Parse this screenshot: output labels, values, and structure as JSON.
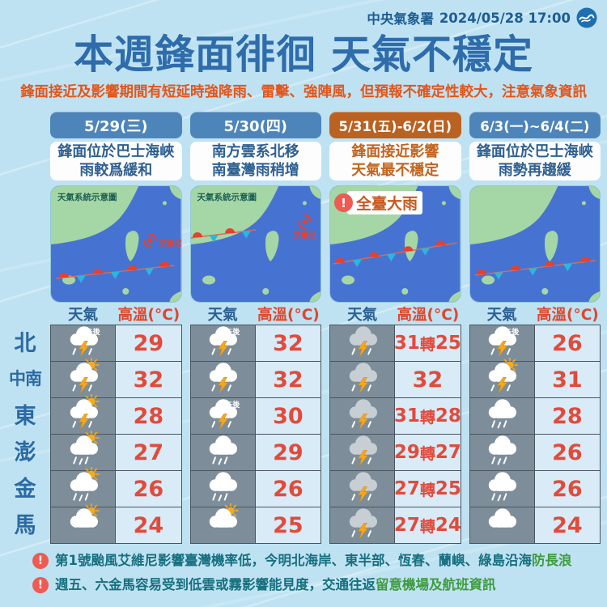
{
  "colors": {
    "background": "#bfe2f2",
    "title_blue": "#2e6cab",
    "subtitle_orange": "#e4551a",
    "pill_blue": "#4d85bb",
    "pill_orange": "#b96222",
    "map_sea": "#4673d2",
    "map_land": "#a5d6a5",
    "front_red": "#e8402e",
    "front_blue": "#2bb7dd",
    "icon_cell_gray": "#7d8e9a",
    "temp_cell_blue": "#d8ebf7",
    "temp_red": "#e14b3c",
    "note_teal": "#17707f",
    "note_green": "#3f9c40"
  },
  "header": {
    "agency": "中央氣象署",
    "datetime": "2024/05/28 17:00",
    "logo": "cwa-logo"
  },
  "title": "本週鋒面徘徊 天氣不穩定",
  "subtitle": "鋒面接近及影響期間有短延時強降雨、雷擊、強陣風，但預報不確定性較大，注意氣象資訊",
  "days": [
    {
      "date": "5/29(三)",
      "accent": "blue",
      "desc_line1": "鋒面位於巴士海峽",
      "desc_line2": "雨較爲緩和",
      "map": {
        "caption": "天氣系統示意圖",
        "typhoon_label": "艾維尼"
      }
    },
    {
      "date": "5/30(四)",
      "accent": "blue",
      "desc_line1": "南方雲系北移",
      "desc_line2": "南臺灣雨稍增",
      "map": {
        "caption": "天氣系統示意圖",
        "typhoon_label": "艾維尼"
      }
    },
    {
      "date": "5/31(五)-6/2(日)",
      "accent": "orange",
      "desc_line1": "鋒面接近影響",
      "desc_line2": "天氣最不穩定",
      "map": {
        "warning": "全臺大雨"
      }
    },
    {
      "date": "6/3(一)~6/4(二)",
      "accent": "blue",
      "desc_line1": "鋒面位於巴士海峽",
      "desc_line2": "雨勢再趨緩",
      "map": {}
    }
  ],
  "table": {
    "col_headers": {
      "weather": "天氣",
      "high_temp": "高溫(°C)"
    },
    "rows": [
      {
        "region": "北",
        "cells": [
          {
            "icon": "thunderstorm",
            "badge": "午後",
            "temp": "29"
          },
          {
            "icon": "thunderstorm",
            "badge": "午後",
            "temp": "32"
          },
          {
            "icon": "thunderstorm-gray",
            "temp": "31轉25"
          },
          {
            "icon": "thunderstorm",
            "badge": "午後",
            "temp": "26"
          }
        ]
      },
      {
        "region": "中南",
        "cells": [
          {
            "icon": "sun-thunderstorm",
            "temp": "32"
          },
          {
            "icon": "thunderstorm",
            "temp": "32"
          },
          {
            "icon": "thunderstorm-gray",
            "temp": "32"
          },
          {
            "icon": "sun-thunderstorm",
            "temp": "31"
          }
        ]
      },
      {
        "region": "東",
        "cells": [
          {
            "icon": "sun-thunderstorm",
            "temp": "28"
          },
          {
            "icon": "thunderstorm",
            "badge": "午後",
            "temp": "30"
          },
          {
            "icon": "thunderstorm-gray",
            "temp": "31轉28"
          },
          {
            "icon": "rain",
            "temp": "28"
          }
        ]
      },
      {
        "region": "澎",
        "cells": [
          {
            "icon": "sun-rain",
            "temp": "27"
          },
          {
            "icon": "rain",
            "temp": "29"
          },
          {
            "icon": "thunderstorm-gray",
            "temp": "29轉27"
          },
          {
            "icon": "rain",
            "temp": "26"
          }
        ]
      },
      {
        "region": "金",
        "cells": [
          {
            "icon": "sun-rain",
            "temp": "26"
          },
          {
            "icon": "rain",
            "temp": "26"
          },
          {
            "icon": "thunderstorm-gray",
            "temp": "27轉25"
          },
          {
            "icon": "rain",
            "temp": "26"
          }
        ]
      },
      {
        "region": "馬",
        "cells": [
          {
            "icon": "sun-cloud",
            "temp": "24"
          },
          {
            "icon": "sun-cloud",
            "temp": "25"
          },
          {
            "icon": "thunderstorm-gray",
            "temp": "27轉24"
          },
          {
            "icon": "cloudy",
            "temp": "24"
          }
        ]
      }
    ]
  },
  "notes": [
    {
      "text_main": "第1號颱風艾維尼影響臺灣機率低，今明北海岸、東半部、恆春、蘭嶼、綠島沿海",
      "text_em": "防長浪"
    },
    {
      "text_main": "週五、六金馬容易受到低雲或霧影響能見度，交通往返",
      "text_em": "留意機場及航班資訊"
    }
  ]
}
